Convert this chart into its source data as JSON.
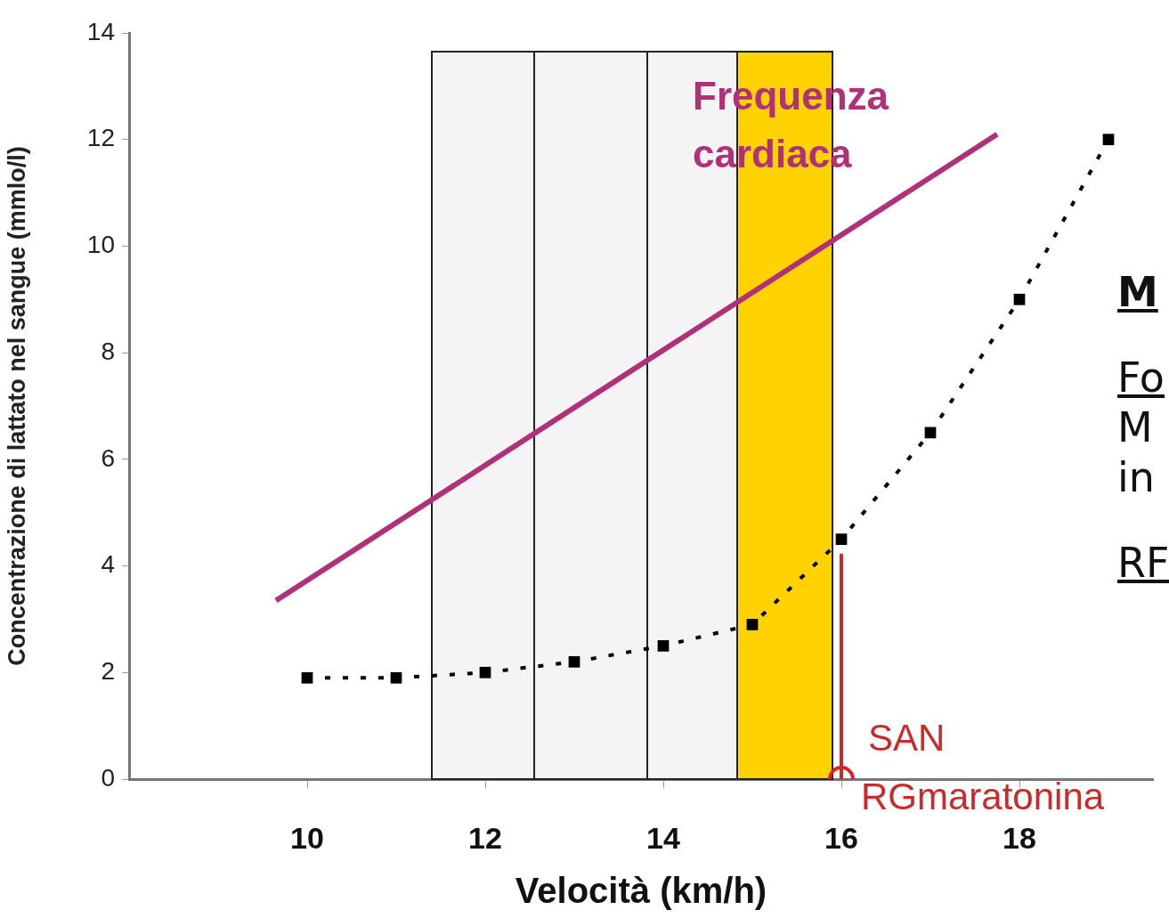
{
  "chart_data": {
    "type": "line",
    "xlabel": "Velocità (km/h)",
    "ylabel": "Concentrazione di lattato nel sangue (mmlo/l)",
    "xlim": [
      8,
      19.5
    ],
    "xticks": [
      10,
      12,
      14,
      16,
      18
    ],
    "ylim": [
      0,
      14
    ],
    "yticks": [
      0,
      2,
      4,
      6,
      8,
      10,
      12,
      14
    ],
    "grid": false,
    "legend": false,
    "series": [
      {
        "name": "Frequenza cardiaca",
        "color": "#b0307a",
        "x": [
          9.65,
          17.75
        ],
        "values": [
          3.35,
          12.1
        ],
        "marker": "none",
        "line_style": "solid"
      },
      {
        "color": "#000000",
        "x": [
          10,
          11,
          12,
          13,
          14,
          15,
          16,
          17,
          18,
          19
        ],
        "values": [
          1.9,
          1.9,
          2.0,
          2.2,
          2.5,
          2.9,
          4.5,
          6.5,
          9.0,
          12.0
        ],
        "marker": "square",
        "line_style": "dashed"
      },
      {
        "color": "#cc2a2a",
        "x": [
          16,
          16
        ],
        "values": [
          4.2,
          0
        ],
        "marker": "none",
        "line_style": "solid"
      },
      {
        "type": "scatter",
        "color": "#dd2222",
        "x": [
          16
        ],
        "values": [
          0
        ],
        "marker": "circle"
      }
    ],
    "bands": [
      {
        "axis": "x",
        "from": 11.4,
        "to": 12.55,
        "color": "#f4f4f4"
      },
      {
        "axis": "x",
        "from": 12.55,
        "to": 13.82,
        "color": "#f4f4f4"
      },
      {
        "axis": "x",
        "from": 13.82,
        "to": 14.83,
        "color": "#f4f4f4"
      },
      {
        "axis": "x",
        "from": 14.83,
        "to": 15.9,
        "color": "#ffd200"
      }
    ],
    "annotations": [
      {
        "text": "SAN\nRGmaratonina",
        "x": 16,
        "y": 0
      },
      "M",
      "Fo",
      "M",
      "in",
      "RF"
    ]
  }
}
